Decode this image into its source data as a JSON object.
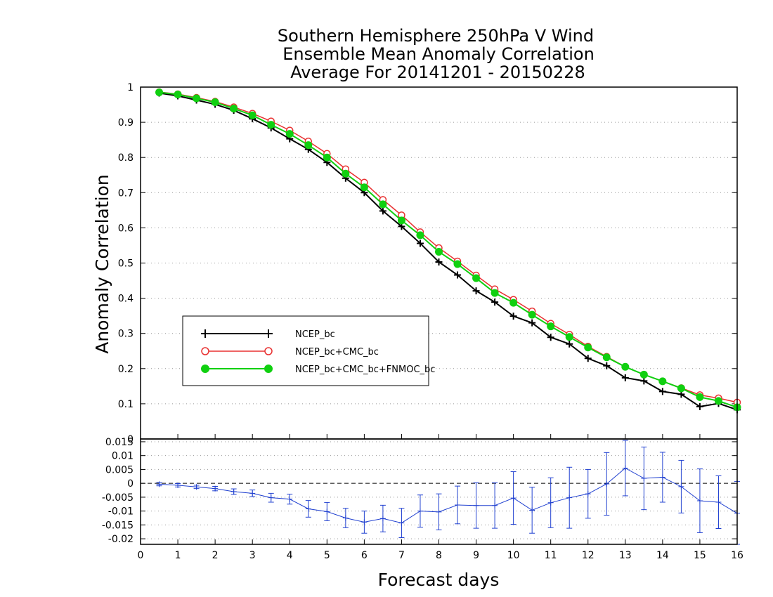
{
  "chart_data": [
    {
      "type": "line",
      "title": "Southern Hemisphere 250hPa V Wind",
      "subtitle": [
        "Ensemble Mean Anomaly Correlation",
        "Average For 20141201 - 20150228"
      ],
      "ylabel": "Anomaly Correlation",
      "xlim": [
        0,
        16
      ],
      "ylim": [
        0,
        1
      ],
      "ytick_labels": [
        "0",
        "0.1",
        "0.2",
        "0.3",
        "0.4",
        "0.5",
        "0.6",
        "0.7",
        "0.8",
        "0.9",
        "1"
      ],
      "grid": "horizontal dotted",
      "legend_position": "lower-left",
      "x": [
        0.5,
        1.0,
        1.5,
        2.0,
        2.5,
        3.0,
        3.5,
        4.0,
        4.5,
        5.0,
        5.5,
        6.0,
        6.5,
        7.0,
        7.5,
        8.0,
        8.5,
        9.0,
        9.5,
        10.0,
        10.5,
        11.0,
        11.5,
        12.0,
        12.5,
        13.0,
        13.5,
        14.0,
        14.5,
        15.0,
        15.5,
        16.0
      ],
      "series": [
        {
          "name": "NCEP_bc",
          "color": "#000000",
          "marker": "plus",
          "values": [
            0.983,
            0.975,
            0.963,
            0.951,
            0.934,
            0.91,
            0.884,
            0.853,
            0.823,
            0.786,
            0.741,
            0.7,
            0.648,
            0.604,
            0.556,
            0.503,
            0.466,
            0.421,
            0.389,
            0.349,
            0.33,
            0.289,
            0.27,
            0.229,
            0.208,
            0.174,
            0.165,
            0.135,
            0.127,
            0.092,
            0.101,
            0.083
          ]
        },
        {
          "name": "NCEP_bc+CMC_bc",
          "color": "#e83030",
          "marker": "open-circle",
          "values": [
            0.986,
            0.98,
            0.97,
            0.959,
            0.943,
            0.925,
            0.903,
            0.877,
            0.846,
            0.811,
            0.767,
            0.729,
            0.68,
            0.636,
            0.588,
            0.543,
            0.505,
            0.465,
            0.426,
            0.396,
            0.363,
            0.328,
            0.297,
            0.263,
            0.234,
            0.205,
            0.183,
            0.164,
            0.145,
            0.125,
            0.116,
            0.104
          ]
        },
        {
          "name": "NCEP_bc+CMC_bc+FNMOC_bc",
          "color": "#10d010",
          "marker": "filled-circle",
          "values": [
            0.985,
            0.979,
            0.968,
            0.957,
            0.939,
            0.92,
            0.893,
            0.867,
            0.835,
            0.8,
            0.754,
            0.715,
            0.667,
            0.621,
            0.579,
            0.532,
            0.497,
            0.457,
            0.415,
            0.387,
            0.353,
            0.32,
            0.29,
            0.26,
            0.232,
            0.205,
            0.183,
            0.164,
            0.144,
            0.119,
            0.108,
            0.09
          ]
        }
      ]
    },
    {
      "type": "line",
      "xlabel": "Forecast days",
      "xlim": [
        0,
        16
      ],
      "ylim": [
        -0.022,
        0.016
      ],
      "xtick_labels": [
        "0",
        "1",
        "2",
        "3",
        "4",
        "5",
        "6",
        "7",
        "8",
        "9",
        "10",
        "11",
        "12",
        "13",
        "14",
        "15",
        "16"
      ],
      "ytick_labels": [
        "0.015",
        "0.01",
        "0.005",
        "0",
        "-0.005",
        "-0.01",
        "-0.015",
        "-0.02"
      ],
      "grid": "horizontal dotted",
      "zero_line": "dashed",
      "x": [
        0.5,
        1.0,
        1.5,
        2.0,
        2.5,
        3.0,
        3.5,
        4.0,
        4.5,
        5.0,
        5.5,
        6.0,
        6.5,
        7.0,
        7.5,
        8.0,
        8.5,
        9.0,
        9.5,
        10.0,
        10.5,
        11.0,
        11.5,
        12.0,
        12.5,
        13.0,
        13.5,
        14.0,
        14.5,
        15.0,
        15.5,
        16.0
      ],
      "series": [
        {
          "name": "",
          "color": "#2040d0",
          "marker": "plus",
          "values": [
            -0.0003,
            -0.0007,
            -0.0013,
            -0.0019,
            -0.003,
            -0.0036,
            -0.0052,
            -0.0057,
            -0.0092,
            -0.0102,
            -0.0125,
            -0.014,
            -0.0127,
            -0.0143,
            -0.01,
            -0.0103,
            -0.0078,
            -0.008,
            -0.008,
            -0.0053,
            -0.0097,
            -0.007,
            -0.0052,
            -0.0038,
            -0.0002,
            0.0055,
            0.0018,
            0.0022,
            -0.0012,
            -0.0063,
            -0.0068,
            -0.0108
          ],
          "error": [
            0.0006,
            0.0006,
            0.0006,
            0.0008,
            0.001,
            0.0012,
            0.0016,
            0.0018,
            0.003,
            0.0033,
            0.0035,
            0.004,
            0.0048,
            0.0053,
            0.0058,
            0.0065,
            0.0068,
            0.0082,
            0.0082,
            0.0095,
            0.0083,
            0.009,
            0.011,
            0.0088,
            0.0113,
            0.01,
            0.0113,
            0.009,
            0.0095,
            0.0115,
            0.0095,
            0.0115
          ]
        }
      ]
    }
  ]
}
